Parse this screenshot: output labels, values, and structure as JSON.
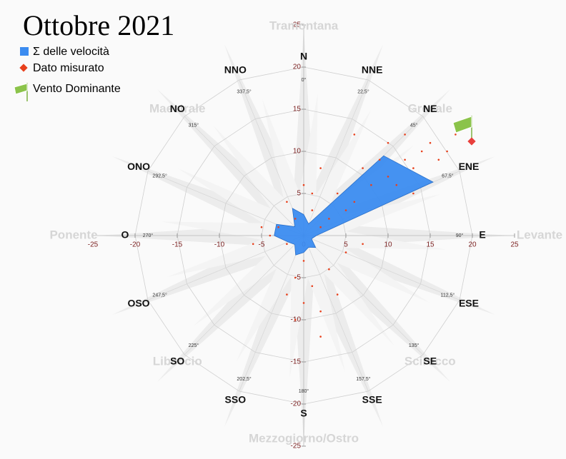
{
  "chart_data": {
    "type": "radar",
    "title": "Ottobre 2021",
    "categories": [
      "N",
      "NNE",
      "NE",
      "ENE",
      "E",
      "ESE",
      "SE",
      "SSE",
      "S",
      "SSO",
      "SO",
      "OSO",
      "O",
      "ONO",
      "NO",
      "NNO"
    ],
    "angle_labels": [
      "0°",
      "22,5°",
      "45°",
      "67,5°",
      "90°",
      "112,5°",
      "135°",
      "157,5°",
      "180°",
      "202,5°",
      "225°",
      "247,5°",
      "270°",
      "292,5°",
      "315°",
      "337,5°"
    ],
    "wind_names": [
      "Tramontana",
      "Grecale",
      "Levante",
      "Scirocco",
      "Mezzogiorno/Ostro",
      "Libeccio",
      "Ponente",
      "Maestrale"
    ],
    "legend_extra": "Vento Dominante",
    "rlim": [
      0,
      25
    ],
    "rticks": [
      5,
      10,
      15,
      20
    ],
    "xticks": [
      -25,
      -20,
      -15,
      -10,
      -5,
      0,
      5,
      10,
      15,
      20,
      25
    ],
    "yticks": [
      -25,
      -20,
      -15,
      -10,
      -5,
      5,
      10,
      15,
      20,
      25
    ],
    "series": [
      {
        "name": "Σ delle velocità",
        "color": "#3b8cf0",
        "values": [
          2.5,
          1.5,
          13.4,
          16.6,
          1.5,
          1,
          2,
          1.5,
          2,
          2.5,
          1.5,
          2,
          3.5,
          3.5,
          1.5,
          3.5
        ]
      },
      {
        "name": "Dato misurato",
        "type": "scatter",
        "color": "#e8401c",
        "x": [
          8,
          10,
          12,
          14,
          6,
          9,
          11,
          13,
          15,
          7,
          5,
          16,
          3,
          4,
          12,
          10,
          17,
          2,
          1,
          -1,
          -3,
          -4,
          -2,
          0,
          -1,
          1,
          0,
          2,
          -1,
          3,
          5,
          7,
          -5,
          -6,
          1,
          0,
          2,
          -2,
          18,
          13,
          4,
          2,
          -2,
          6
        ],
        "y": [
          6,
          7,
          9,
          10,
          4,
          9,
          6,
          8,
          11,
          8,
          3,
          9,
          2,
          5,
          12,
          11,
          10,
          1,
          3,
          2,
          1,
          0,
          -1,
          -3,
          -5,
          -6,
          -8,
          -9,
          -10,
          -4,
          -2,
          -1,
          1,
          -1,
          5,
          6,
          8,
          4,
          12,
          5,
          -7,
          -12,
          -7,
          12
        ]
      }
    ]
  }
}
